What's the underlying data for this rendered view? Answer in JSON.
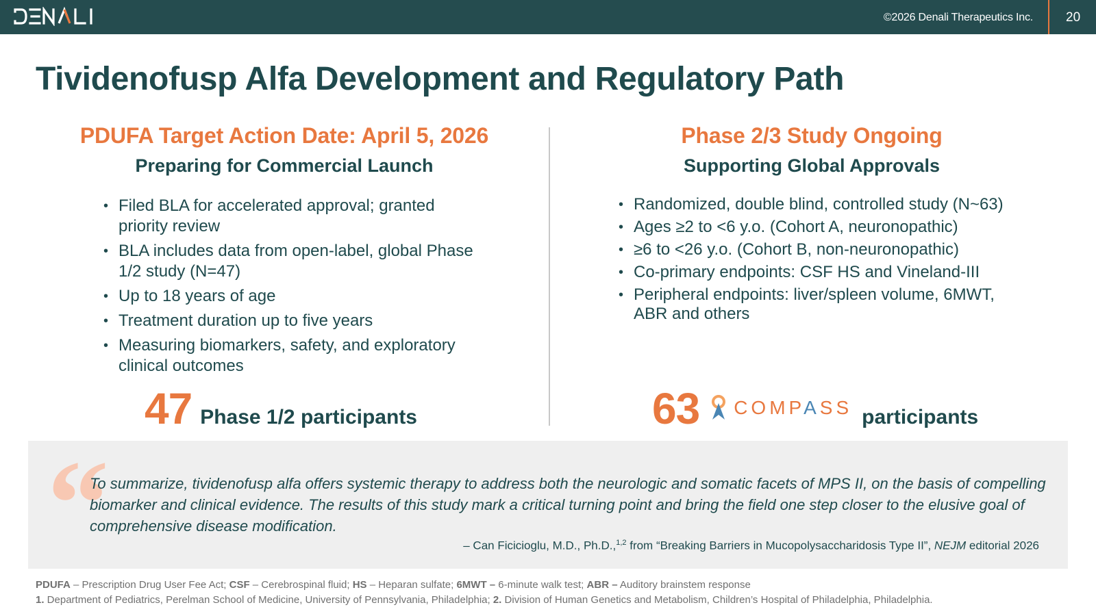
{
  "header": {
    "logo_text": "DENALI",
    "copyright": "©2026 Denali Therapeutics Inc.",
    "page_number": "20",
    "accent_color": "#e8783f",
    "bar_color": "#254c4f"
  },
  "title": "Tividenofusp Alfa Development and Regulatory Path",
  "left": {
    "heading": "PDUFA Target Action Date: April 5, 2026",
    "subheading": "Preparing for Commercial Launch",
    "bullets": [
      "Filed BLA for accelerated approval; granted priority review",
      "BLA includes data from open-label, global Phase 1/2 study (N=47)",
      "Up to 18 years of age",
      "Treatment duration up to five years",
      "Measuring biomarkers, safety, and exploratory clinical outcomes"
    ],
    "stat_number": "47",
    "stat_label": "Phase 1/2 participants"
  },
  "right": {
    "heading": "Phase 2/3 Study Ongoing",
    "subheading": "Supporting Global Approvals",
    "bullets": [
      "Randomized, double blind, controlled study (N~63)",
      "Ages ≥2 to <6 y.o. (Cohort A, neuronopathic)",
      "≥6 to <26 y.o. (Cohort B, non-neuronopathic)",
      "Co-primary endpoints: CSF HS and Vineland-III",
      "Peripheral endpoints: liver/spleen volume, 6MWT, ABR and others"
    ],
    "stat_number": "63",
    "compass_prefix": "COMP",
    "compass_accent": "A",
    "compass_suffix": "SS",
    "stat_label": "participants"
  },
  "quote": {
    "mark": "“",
    "text": "To summarize, tividenofusp alfa offers systemic therapy to address both the neurologic and somatic facets of MPS II, on the basis of compelling biomarker and clinical evidence. The results of this study mark a critical turning point and bring the field one step closer to the elusive goal of comprehensive disease modification.",
    "attribution_prefix": "– Can Ficicioglu, M.D., Ph.D.,",
    "attribution_sup": "1,2",
    "attribution_mid": " from “Breaking Barriers in Mucopolysaccharidosis Type II”, ",
    "attribution_journal": "NEJM",
    "attribution_suffix": " editorial 2026"
  },
  "footnotes": {
    "abbr": [
      {
        "term": "PDUFA",
        "def": " – Prescription Drug User Fee Act; "
      },
      {
        "term": "CSF",
        "def": " – Cerebrospinal fluid; "
      },
      {
        "term": "HS",
        "def": " – Heparan sulfate;  "
      },
      {
        "term": "6MWT –",
        "def": " 6-minute walk test; "
      },
      {
        "term": "ABR –",
        "def": " Auditory brainstem response"
      }
    ],
    "refs": [
      {
        "term": "1.",
        "def": " Department of Pediatrics, Perelman School of Medicine, University of Pennsylvania, Philadelphia; "
      },
      {
        "term": "2.",
        "def": " Division of Human Genetics and Metabolism, Children’s Hospital of Philadelphia, Philadelphia."
      }
    ]
  }
}
